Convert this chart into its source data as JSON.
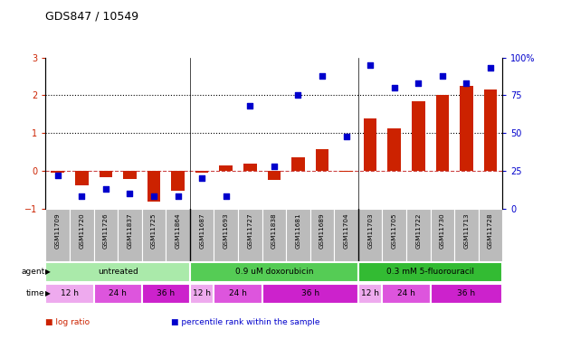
{
  "title": "GDS847 / 10549",
  "samples": [
    "GSM11709",
    "GSM11720",
    "GSM11726",
    "GSM11837",
    "GSM11725",
    "GSM11864",
    "GSM11687",
    "GSM11693",
    "GSM11727",
    "GSM11838",
    "GSM11681",
    "GSM11689",
    "GSM11704",
    "GSM11703",
    "GSM11705",
    "GSM11722",
    "GSM11730",
    "GSM11713",
    "GSM11728"
  ],
  "log_ratio": [
    -0.05,
    -0.38,
    -0.18,
    -0.22,
    -0.82,
    -0.52,
    -0.05,
    0.13,
    0.2,
    -0.25,
    0.35,
    0.58,
    -0.03,
    1.38,
    1.13,
    1.85,
    2.0,
    2.25,
    2.15
  ],
  "percentile": [
    22,
    8,
    13,
    10,
    8,
    8,
    20,
    8,
    68,
    28,
    75,
    88,
    48,
    95,
    80,
    83,
    88,
    83,
    93
  ],
  "ylim_left": [
    -1,
    3
  ],
  "ylim_right": [
    0,
    100
  ],
  "yticks_left": [
    -1,
    0,
    1,
    2,
    3
  ],
  "yticks_right": [
    0,
    25,
    50,
    75,
    100
  ],
  "bar_color": "#cc2200",
  "dot_color": "#0000cc",
  "zero_line_color": "#cc4444",
  "background_chart": "#ffffff",
  "background_xlabels": "#bbbbbb",
  "agent_groups": [
    {
      "label": "untreated",
      "start": 0,
      "end": 6,
      "color": "#aaeaaa"
    },
    {
      "label": "0.9 uM doxorubicin",
      "start": 6,
      "end": 13,
      "color": "#55cc55"
    },
    {
      "label": "0.3 mM 5-fluorouracil",
      "start": 13,
      "end": 19,
      "color": "#33bb33"
    }
  ],
  "time_groups": [
    {
      "label": "12 h",
      "start": 0,
      "end": 2,
      "color": "#eeaaee"
    },
    {
      "label": "24 h",
      "start": 2,
      "end": 4,
      "color": "#dd55dd"
    },
    {
      "label": "36 h",
      "start": 4,
      "end": 6,
      "color": "#cc22cc"
    },
    {
      "label": "12 h",
      "start": 6,
      "end": 7,
      "color": "#eeaaee"
    },
    {
      "label": "24 h",
      "start": 7,
      "end": 9,
      "color": "#dd55dd"
    },
    {
      "label": "36 h",
      "start": 9,
      "end": 13,
      "color": "#cc22cc"
    },
    {
      "label": "12 h",
      "start": 13,
      "end": 14,
      "color": "#eeaaee"
    },
    {
      "label": "24 h",
      "start": 14,
      "end": 16,
      "color": "#dd55dd"
    },
    {
      "label": "36 h",
      "start": 16,
      "end": 19,
      "color": "#cc22cc"
    }
  ],
  "legend_labels": [
    "log ratio",
    "percentile rank within the sample"
  ],
  "legend_colors": [
    "#cc2200",
    "#0000cc"
  ],
  "group_boundaries": [
    6,
    13
  ]
}
